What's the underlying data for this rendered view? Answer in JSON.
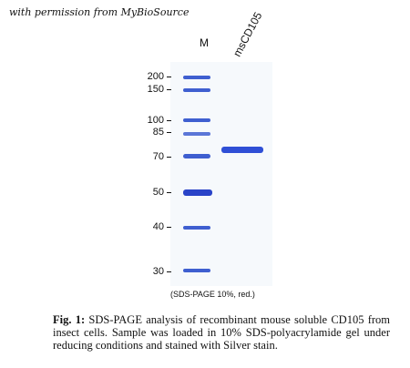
{
  "watermark": "with permission from MyBioSource",
  "gel": {
    "lane_marker_label": "M",
    "lane_sample_label": "msCD105",
    "marker_weights": [
      "200",
      "150",
      "100",
      "85",
      "70",
      "50",
      "40",
      "30"
    ],
    "gel_note": "(SDS-PAGE 10%, red.)",
    "band_color": "#3f5fd0"
  },
  "caption": {
    "fig_label": "Fig. 1:",
    "text": " SDS-PAGE analysis of recombinant mouse soluble CD105 from insect cells. Sample was loaded in 10% SDS-polyacrylamide gel under reducing conditions and stained with Silver stain."
  }
}
